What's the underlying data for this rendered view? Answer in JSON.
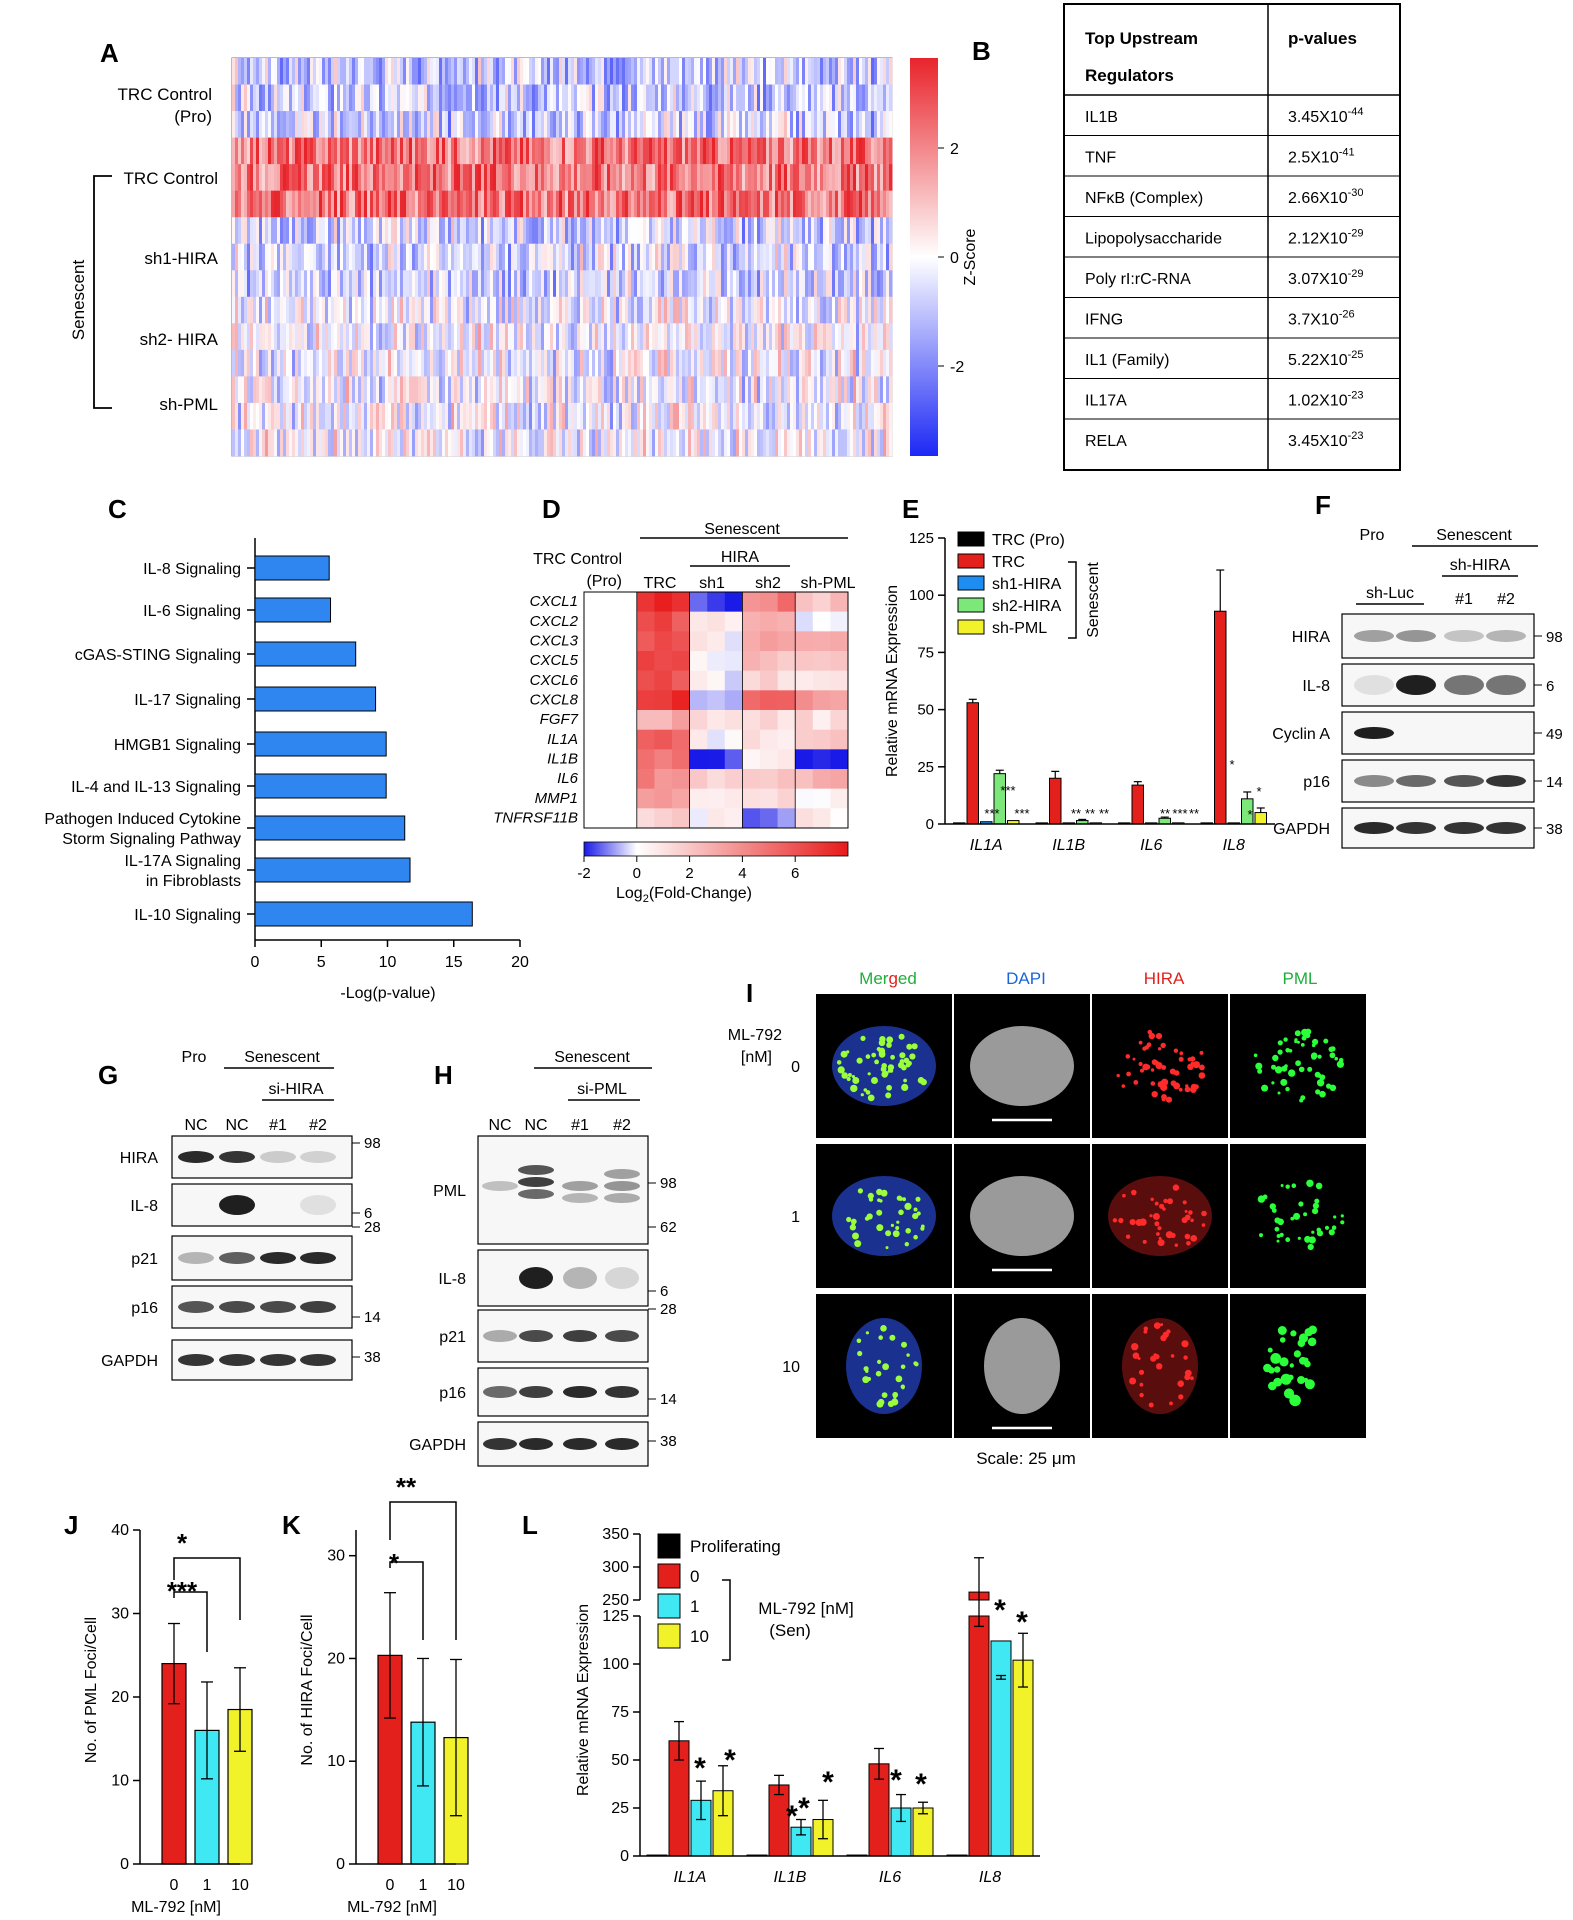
{
  "panels": {
    "A": {
      "letter": "A",
      "rows": [
        "TRC Control\n(Pro)",
        "TRC Control",
        "sh1-HIRA",
        "sh2- HIRA",
        "sh-PML"
      ],
      "senescent_label": "Senescent",
      "colorbar": {
        "title": "Z-Score",
        "ticks": [
          "2",
          "0",
          "-2"
        ],
        "colors": [
          "#e8242b",
          "#ffffff",
          "#1c28f5"
        ]
      }
    },
    "B": {
      "letter": "B",
      "header": [
        "Top Upstream\nRegulators",
        "p-values"
      ],
      "rows": [
        {
          "reg": "IL1B",
          "p": "3.45X10",
          "e": "-44"
        },
        {
          "reg": "TNF",
          "p": "2.5X10",
          "e": "-41"
        },
        {
          "reg": "NFκB (Complex)",
          "p": "2.66X10",
          "e": "-30"
        },
        {
          "reg": "Lipopolysaccharide",
          "p": "2.12X10",
          "e": "-29"
        },
        {
          "reg": "Poly rI:rC-RNA",
          "p": "3.07X10",
          "e": "-29"
        },
        {
          "reg": "IFNG",
          "p": "3.7X10",
          "e": "-26"
        },
        {
          "reg": "IL1 (Family)",
          "p": "5.22X10",
          "e": "-25"
        },
        {
          "reg": "IL17A",
          "p": "1.02X10",
          "e": "-23"
        },
        {
          "reg": "RELA",
          "p": "3.45X10",
          "e": "-23"
        }
      ]
    },
    "C": {
      "letter": "C",
      "xlabel": "-Log(p-value)",
      "xticks": [
        "0",
        "5",
        "10",
        "15",
        "20"
      ],
      "bar_color": "#2f86f0"
    },
    "D": {
      "letter": "D",
      "header_senescent": "Senescent",
      "header_hira": "HIRA",
      "col_labels": [
        "TRC Control\n(Pro)",
        "TRC",
        "sh1",
        "sh2",
        "sh-PML"
      ],
      "genes": [
        "CXCL1",
        "CXCL2",
        "CXCL3",
        "CXCL5",
        "CXCL6",
        "CXCL8",
        "FGF7",
        "IL1A",
        "IL1B",
        "IL6",
        "MMP1",
        "TNFRSF11B"
      ],
      "colorbar_ticks": [
        "-2",
        "0",
        "2",
        "4",
        "6"
      ],
      "colorbar_label": "Log2(Fold-Change)"
    },
    "E": {
      "letter": "E",
      "ylabel": "Relative mRNA Expression",
      "yticks": [
        "0",
        "25",
        "50",
        "75",
        "100",
        "125"
      ],
      "legend": [
        "TRC (Pro)",
        "TRC",
        "sh1-HIRA",
        "sh2-HIRA",
        "sh-PML"
      ],
      "senescent_label": "Senescent",
      "colors": [
        "#000000",
        "#e3201c",
        "#1e8df2",
        "#7de87a",
        "#f2f22a"
      ],
      "stars": [
        "***",
        "***",
        "***",
        "**",
        "**",
        "**",
        "**",
        "***",
        "**",
        "*",
        "*",
        "*"
      ]
    },
    "F": {
      "letter": "F",
      "pro": "Pro",
      "senescent": "Senescent",
      "sh_hira": "sh-HIRA",
      "sh_luc": "sh-Luc",
      "n1": "#1",
      "n2": "#2",
      "bands": [
        "HIRA",
        "IL-8",
        "Cyclin A",
        "p16",
        "GAPDH"
      ],
      "mw": [
        "98",
        "6",
        "49",
        "14",
        "38"
      ]
    },
    "G": {
      "letter": "G",
      "pro": "Pro",
      "senescent": "Senescent",
      "si": "si-HIRA",
      "lanes": [
        "NC",
        "NC",
        "#1",
        "#2"
      ],
      "bands": [
        "HIRA",
        "IL-8",
        "p21",
        "p16",
        "GAPDH"
      ],
      "mw": [
        "98",
        "6",
        "28",
        "14",
        "38"
      ]
    },
    "H": {
      "letter": "H",
      "senescent": "Senescent",
      "si": "si-PML",
      "lanes": [
        "NC",
        "NC",
        "#1",
        "#2"
      ],
      "bands": [
        "PML",
        "IL-8",
        "p21",
        "p16",
        "GAPDH"
      ],
      "mw": [
        "98",
        "62",
        "6",
        "28",
        "14",
        "38"
      ]
    },
    "I": {
      "letter": "I",
      "merged_parts": [
        "Mer",
        "g",
        "ed"
      ],
      "channels": [
        "DAPI",
        "HIRA",
        "PML"
      ],
      "dose_label": "ML-792\n[nM]",
      "doses": [
        "0",
        "1",
        "10"
      ],
      "scale": "Scale: 25 μm"
    },
    "J": {
      "letter": "J",
      "ylabel": "No. of PML Foci/Cell",
      "xlabel": "ML-792 [nM]",
      "yticks": [
        "0",
        "10",
        "20",
        "30",
        "40"
      ],
      "xticks": [
        "0",
        "1",
        "10"
      ],
      "sig": [
        "***",
        "*"
      ]
    },
    "K": {
      "letter": "K",
      "ylabel": "No. of HIRA Foci/Cell",
      "xlabel": "ML-792 [nM]",
      "yticks": [
        "0",
        "10",
        "20",
        "30"
      ],
      "xticks": [
        "0",
        "1",
        "10"
      ],
      "sig": [
        "*",
        "**"
      ]
    },
    "L": {
      "letter": "L",
      "ylabel": "Relative mRNA Expression",
      "yticks_low": [
        "0",
        "25",
        "50",
        "75",
        "100",
        "125"
      ],
      "yticks_high": [
        "250",
        "300",
        "350"
      ],
      "legend": [
        "Proliferating",
        "0",
        "1",
        "10"
      ],
      "bracket_label": "ML-792 [nM]\n(Sen)",
      "colors": [
        "#000000",
        "#e3201c",
        "#3fe8f2",
        "#f2f22a"
      ]
    }
  },
  "chart_data": [
    {
      "type": "bar",
      "title": "",
      "panel": "C",
      "orientation": "horizontal",
      "categories": [
        "IL-8 Signaling",
        "IL-6 Signaling",
        "cGAS-STING Signaling",
        "IL-17 Signaling",
        "HMGB1 Signaling",
        "IL-4 and IL-13 Signaling",
        "Pathogen Induced Cytokine\nStorm Signaling Pathway",
        "IL-17A Signaling\nin Fibroblasts",
        "IL-10 Signaling"
      ],
      "values": [
        5.6,
        5.7,
        7.6,
        9.1,
        9.9,
        9.9,
        11.3,
        11.7,
        16.4
      ],
      "xlabel": "-Log(p-value)",
      "xlim": [
        0,
        20
      ]
    },
    {
      "type": "bar",
      "panel": "E",
      "categories": [
        "IL1A",
        "IL1B",
        "IL6",
        "IL8"
      ],
      "series": [
        {
          "name": "TRC (Pro)",
          "values": [
            0.5,
            0.5,
            0.5,
            0.5
          ],
          "errors": [
            0,
            0,
            0,
            0
          ]
        },
        {
          "name": "TRC",
          "values": [
            53,
            20,
            17,
            93
          ],
          "errors": [
            1.5,
            3,
            1.5,
            18
          ]
        },
        {
          "name": "sh1-HIRA",
          "values": [
            1,
            0.5,
            0.5,
            0.5
          ],
          "errors": [
            0,
            0,
            0,
            0
          ]
        },
        {
          "name": "sh2-HIRA",
          "values": [
            22,
            1.5,
            2.5,
            11
          ],
          "errors": [
            1.5,
            0.5,
            0.5,
            3
          ]
        },
        {
          "name": "sh-PML",
          "values": [
            1.5,
            0.5,
            0.5,
            5
          ],
          "errors": [
            0,
            0,
            0,
            2
          ]
        }
      ],
      "ylabel": "Relative mRNA Expression",
      "ylim": [
        0,
        125
      ]
    },
    {
      "type": "bar",
      "panel": "J",
      "categories": [
        "0",
        "1",
        "10"
      ],
      "values": [
        24,
        16,
        18.5
      ],
      "errors": [
        4.8,
        5.8,
        5
      ],
      "ylabel": "No. of PML Foci/Cell",
      "xlabel": "ML-792 [nM]",
      "ylim": [
        0,
        40
      ]
    },
    {
      "type": "bar",
      "panel": "K",
      "categories": [
        "0",
        "1",
        "10"
      ],
      "values": [
        20.3,
        13.8,
        12.3
      ],
      "errors": [
        6.1,
        6.2,
        7.6
      ],
      "ylabel": "No. of HIRA Foci/Cell",
      "xlabel": "ML-792 [nM]",
      "ylim": [
        0,
        30
      ]
    },
    {
      "type": "bar",
      "panel": "L",
      "categories": [
        "IL1A",
        "IL1B",
        "IL6",
        "IL8"
      ],
      "series": [
        {
          "name": "Proliferating",
          "values": [
            0.5,
            0.5,
            0.5,
            0.5
          ],
          "errors": [
            0,
            0,
            0,
            0
          ]
        },
        {
          "name": "0",
          "values": [
            60,
            37,
            48,
            262
          ],
          "errors": [
            10,
            5,
            8,
            52
          ]
        },
        {
          "name": "1",
          "values": [
            29,
            15,
            25,
            112
          ],
          "errors": [
            10,
            4,
            7,
            18
          ]
        },
        {
          "name": "10",
          "values": [
            34,
            19,
            25,
            102
          ],
          "errors": [
            13,
            10,
            3,
            14
          ]
        }
      ],
      "ylabel": "Relative mRNA Expression",
      "ylim": [
        0,
        350
      ]
    }
  ]
}
